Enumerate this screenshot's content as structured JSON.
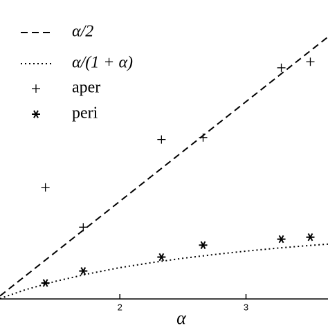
{
  "chart_data": {
    "type": "line",
    "x_label": "α",
    "xlim": [
      1.05,
      3.65
    ],
    "ylim": [
      0.51,
      2.01
    ],
    "xticks": [
      2,
      3
    ],
    "series": [
      {
        "name": "α/2",
        "style": "dashed",
        "color": "#000000",
        "x": [
          1.05,
          1.25,
          1.5,
          1.75,
          2,
          2.25,
          2.5,
          2.75,
          3,
          3.25,
          3.5,
          3.65
        ],
        "values": [
          0.525,
          0.625,
          0.75,
          0.875,
          1,
          1.125,
          1.25,
          1.375,
          1.5,
          1.625,
          1.75,
          1.825
        ]
      },
      {
        "name": "α/(1 + α)",
        "style": "dotted",
        "color": "#000000",
        "x": [
          1.05,
          1.25,
          1.5,
          1.75,
          2,
          2.25,
          2.5,
          2.75,
          3,
          3.25,
          3.5,
          3.65
        ],
        "values": [
          0.512,
          0.556,
          0.6,
          0.636,
          0.667,
          0.692,
          0.714,
          0.733,
          0.75,
          0.765,
          0.778,
          0.785
        ]
      },
      {
        "name": "aper",
        "style": "plus",
        "color": "#000000",
        "x": [
          1.41,
          1.71,
          2.33,
          2.66,
          3.28,
          3.51
        ],
        "values": [
          1.07,
          0.87,
          1.31,
          1.32,
          1.67,
          1.7
        ]
      },
      {
        "name": "peri",
        "style": "asterisk",
        "color": "#000000",
        "x": [
          1.41,
          1.71,
          2.33,
          2.66,
          3.28,
          3.51
        ],
        "values": [
          0.59,
          0.65,
          0.72,
          0.78,
          0.81,
          0.82
        ]
      }
    ]
  }
}
